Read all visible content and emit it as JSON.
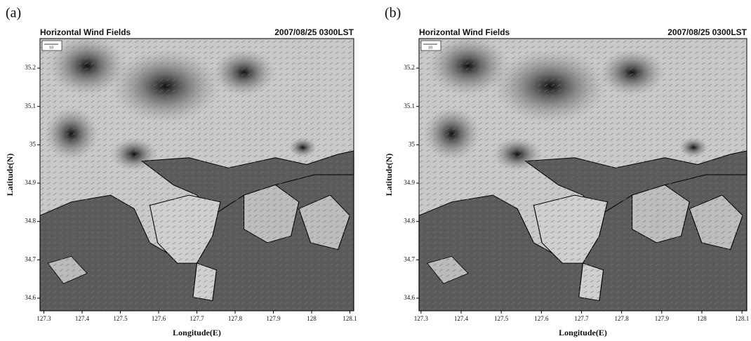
{
  "chart_data": [
    {
      "type": "map",
      "panel_label": "(a)",
      "title": "Horizontal Wind Fields",
      "subtitle": "2007/08/25 0300LST",
      "xlabel": "Longitude(E)",
      "ylabel": "Latitude(N)",
      "reference_vector": 10,
      "xlim": [
        127.29,
        128.11
      ],
      "ylim": [
        34.567,
        35.277
      ],
      "xticks": [
        127.3,
        127.4,
        127.5,
        127.6,
        127.7,
        127.8,
        127.9,
        128,
        128.1
      ],
      "yticks": [
        34.6,
        34.7,
        34.8,
        34.9,
        35,
        35.1,
        35.2
      ]
    },
    {
      "type": "map",
      "panel_label": "(b)",
      "title": "Horizontal Wind Fields",
      "subtitle": "2007/08/25 0300LST",
      "xlabel": "Longitude(E)",
      "ylabel": "Latitude(N)",
      "reference_vector": 10,
      "xlim": [
        127.295,
        128.112
      ],
      "ylim": [
        34.567,
        35.277
      ],
      "xticks": [
        127.3,
        127.4,
        127.5,
        127.6,
        127.7,
        127.8,
        127.9,
        128,
        128.1
      ],
      "yticks": [
        34.6,
        34.7,
        34.8,
        34.9,
        35,
        35.1,
        35.2
      ]
    }
  ]
}
